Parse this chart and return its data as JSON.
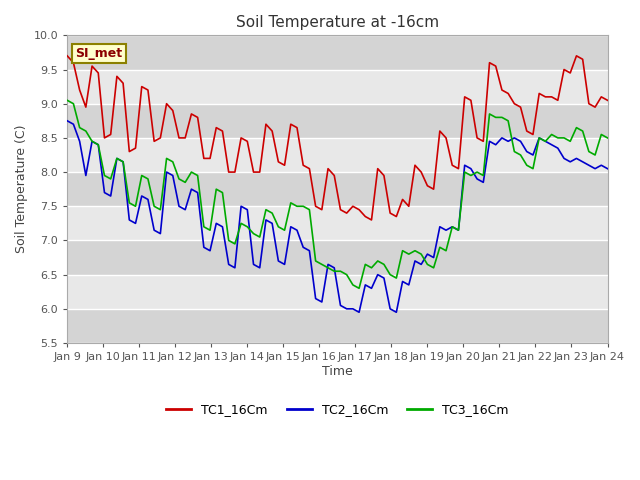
{
  "title": "Soil Temperature at -16cm",
  "xlabel": "Time",
  "ylabel": "Soil Temperature (C)",
  "ylim": [
    5.5,
    10.0
  ],
  "yticks": [
    5.5,
    6.0,
    6.5,
    7.0,
    7.5,
    8.0,
    8.5,
    9.0,
    9.5,
    10.0
  ],
  "x_labels": [
    "Jan 9",
    "Jan 10",
    "Jan 11",
    "Jan 12",
    "Jan 13",
    "Jan 14",
    "Jan 15",
    "Jan 16",
    "Jan 17",
    "Jan 18",
    "Jan 19",
    "Jan 20",
    "Jan 21",
    "Jan 22",
    "Jan 23",
    "Jan 24"
  ],
  "annotation_text": "SI_met",
  "annotation_bg": "#ffffcc",
  "annotation_border": "#8b4513",
  "tc1_color": "#cc0000",
  "tc2_color": "#0000cc",
  "tc3_color": "#00aa00",
  "background_color": "#ffffff",
  "band_light": "#e8e8e8",
  "band_dark": "#d4d4d4",
  "tc1_data": [
    9.7,
    9.6,
    9.2,
    8.95,
    9.55,
    9.45,
    8.5,
    8.55,
    9.4,
    9.3,
    8.3,
    8.35,
    9.25,
    9.2,
    8.45,
    8.5,
    9.0,
    8.9,
    8.5,
    8.5,
    8.85,
    8.8,
    8.2,
    8.2,
    8.65,
    8.6,
    8.0,
    8.0,
    8.5,
    8.45,
    8.0,
    8.0,
    8.7,
    8.6,
    8.15,
    8.1,
    8.7,
    8.65,
    8.1,
    8.05,
    7.5,
    7.45,
    8.05,
    7.95,
    7.45,
    7.4,
    7.5,
    7.45,
    7.35,
    7.3,
    8.05,
    7.95,
    7.4,
    7.35,
    7.6,
    7.5,
    8.1,
    8.0,
    7.8,
    7.75,
    8.6,
    8.5,
    8.1,
    8.05,
    9.1,
    9.05,
    8.5,
    8.45,
    9.6,
    9.55,
    9.2,
    9.15,
    9.0,
    8.95,
    8.6,
    8.55,
    9.15,
    9.1,
    9.1,
    9.05,
    9.5,
    9.45,
    9.7,
    9.65,
    9.0,
    8.95,
    9.1,
    9.05
  ],
  "tc2_data": [
    8.75,
    8.7,
    8.45,
    7.95,
    8.45,
    8.4,
    7.7,
    7.65,
    8.2,
    8.15,
    7.3,
    7.25,
    7.65,
    7.6,
    7.15,
    7.1,
    8.0,
    7.95,
    7.5,
    7.45,
    7.75,
    7.7,
    6.9,
    6.85,
    7.25,
    7.2,
    6.65,
    6.6,
    7.5,
    7.45,
    6.65,
    6.6,
    7.3,
    7.25,
    6.7,
    6.65,
    7.2,
    7.15,
    6.9,
    6.85,
    6.15,
    6.1,
    6.65,
    6.6,
    6.05,
    6.0,
    6.0,
    5.95,
    6.35,
    6.3,
    6.5,
    6.45,
    6.0,
    5.95,
    6.4,
    6.35,
    6.7,
    6.65,
    6.8,
    6.75,
    7.2,
    7.15,
    7.2,
    7.15,
    8.1,
    8.05,
    7.9,
    7.85,
    8.45,
    8.4,
    8.5,
    8.45,
    8.5,
    8.45,
    8.3,
    8.25,
    8.5,
    8.45,
    8.4,
    8.35,
    8.2,
    8.15,
    8.2,
    8.15,
    8.1,
    8.05,
    8.1,
    8.05
  ],
  "tc3_data": [
    9.05,
    9.0,
    8.65,
    8.6,
    8.45,
    8.4,
    7.95,
    7.9,
    8.2,
    8.15,
    7.55,
    7.5,
    7.95,
    7.9,
    7.5,
    7.45,
    8.2,
    8.15,
    7.9,
    7.85,
    8.0,
    7.95,
    7.2,
    7.15,
    7.75,
    7.7,
    7.0,
    6.95,
    7.25,
    7.2,
    7.1,
    7.05,
    7.45,
    7.4,
    7.2,
    7.15,
    7.55,
    7.5,
    7.5,
    7.45,
    6.7,
    6.65,
    6.6,
    6.55,
    6.55,
    6.5,
    6.35,
    6.3,
    6.65,
    6.6,
    6.7,
    6.65,
    6.5,
    6.45,
    6.85,
    6.8,
    6.85,
    6.8,
    6.65,
    6.6,
    6.9,
    6.85,
    7.2,
    7.15,
    8.0,
    7.95,
    8.0,
    7.95,
    8.85,
    8.8,
    8.8,
    8.75,
    8.3,
    8.25,
    8.1,
    8.05,
    8.5,
    8.45,
    8.55,
    8.5,
    8.5,
    8.45,
    8.65,
    8.6,
    8.3,
    8.25,
    8.55,
    8.5
  ]
}
